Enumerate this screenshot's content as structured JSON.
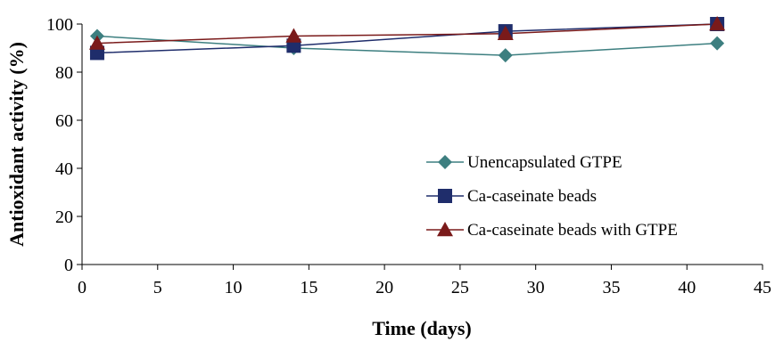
{
  "chart_data": {
    "type": "line",
    "title": "",
    "xlabel": "Time (days)",
    "ylabel": "Antioxidant activity (%)",
    "xlim": [
      0,
      45
    ],
    "ylim": [
      0,
      100
    ],
    "x_ticks": [
      "0",
      "5",
      "10",
      "15",
      "20",
      "25",
      "30",
      "35",
      "40",
      "45"
    ],
    "y_ticks": [
      "0",
      "20",
      "40",
      "60",
      "80",
      "100"
    ],
    "grid": false,
    "legend_position": "right",
    "x": [
      1,
      14,
      28,
      42
    ],
    "series": [
      {
        "name": "Unencapsulated GTPE",
        "values": [
          95,
          90,
          87,
          92
        ],
        "color": "#3d7f80",
        "marker": "diamond"
      },
      {
        "name": "Ca-caseinate beads",
        "values": [
          88,
          91,
          97,
          100
        ],
        "color": "#1f2d6b",
        "marker": "square"
      },
      {
        "name": "Ca-caseinate beads with GTPE",
        "values": [
          92,
          95,
          96,
          100
        ],
        "color": "#7a1a1a",
        "marker": "triangle"
      }
    ]
  }
}
